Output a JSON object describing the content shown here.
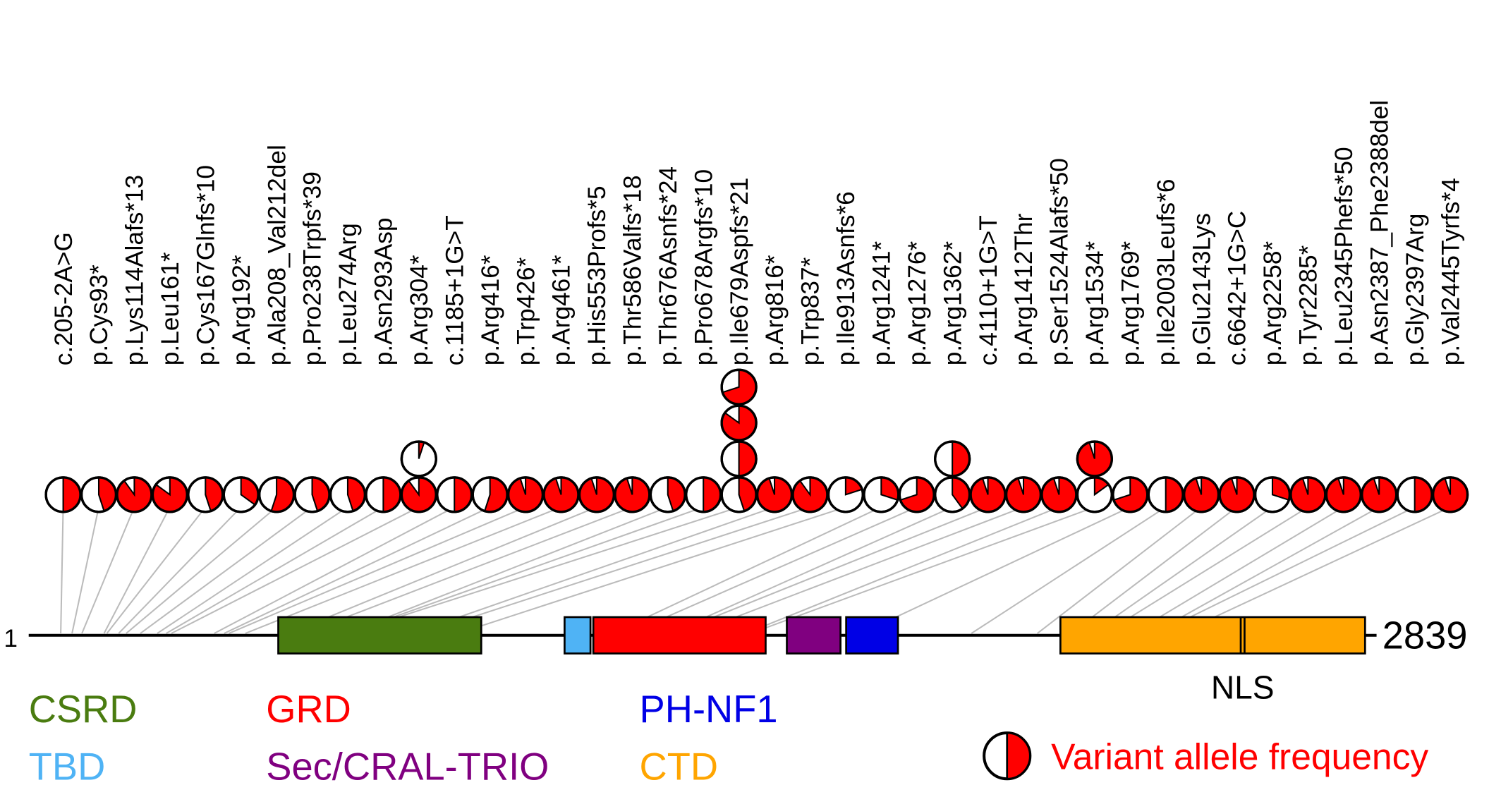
{
  "protein": {
    "start": 1,
    "length": 2839
  },
  "domains": [
    {
      "name": "CSRD",
      "start": 531,
      "end": 962,
      "color": "#4a7c10"
    },
    {
      "name": "TBD",
      "start": 1139,
      "end": 1194,
      "color": "#4fb3f5"
    },
    {
      "name": "GRD",
      "start": 1200,
      "end": 1566,
      "color": "#ff0000"
    },
    {
      "name": "Sec/CRAL-TRIO",
      "start": 1611,
      "end": 1725,
      "color": "#800080"
    },
    {
      "name": "PH-NF1",
      "start": 1737,
      "end": 1847,
      "color": "#0000e6"
    },
    {
      "name": "CTD",
      "start": 2192,
      "end": 2839,
      "color": "#ffa500"
    }
  ],
  "nls": {
    "label": "NLS",
    "position": 2579
  },
  "legend_label": "Variant allele frequency",
  "variants": [
    {
      "label": "c.205-2A>G",
      "position": 69,
      "vaf": [
        0.5
      ]
    },
    {
      "label": "p.Cys93*",
      "position": 93,
      "vaf": [
        0.45
      ]
    },
    {
      "label": "p.Lys114Alafs*13",
      "position": 114,
      "vaf": [
        0.9
      ]
    },
    {
      "label": "p.Leu161*",
      "position": 161,
      "vaf": [
        0.85
      ]
    },
    {
      "label": "p.Cys167Glnfs*10",
      "position": 167,
      "vaf": [
        0.45
      ]
    },
    {
      "label": "p.Arg192*",
      "position": 192,
      "vaf": [
        0.35
      ]
    },
    {
      "label": "p.Ala208_Val212del",
      "position": 208,
      "vaf": [
        0.55
      ]
    },
    {
      "label": "p.Pro238Trpfs*39",
      "position": 238,
      "vaf": [
        0.45
      ]
    },
    {
      "label": "p.Leu274Arg",
      "position": 274,
      "vaf": [
        0.45
      ]
    },
    {
      "label": "p.Asn293Asp",
      "position": 293,
      "vaf": [
        0.5
      ]
    },
    {
      "label": "p.Arg304*",
      "position": 304,
      "vaf": [
        0.9,
        0.05
      ]
    },
    {
      "label": "c.1185+1G>T",
      "position": 395,
      "vaf": [
        0.5
      ]
    },
    {
      "label": "p.Arg416*",
      "position": 416,
      "vaf": [
        0.55
      ]
    },
    {
      "label": "p.Trp426*",
      "position": 426,
      "vaf": [
        0.95
      ]
    },
    {
      "label": "p.Arg461*",
      "position": 461,
      "vaf": [
        0.95
      ]
    },
    {
      "label": "p.His553Profs*5",
      "position": 553,
      "vaf": [
        0.95
      ]
    },
    {
      "label": "p.Thr586Valfs*18",
      "position": 586,
      "vaf": [
        0.95
      ]
    },
    {
      "label": "p.Thr676Asnfs*24",
      "position": 676,
      "vaf": [
        0.45
      ]
    },
    {
      "label": "p.Pro678Argfs*10",
      "position": 678,
      "vaf": [
        0.5
      ]
    },
    {
      "label": "p.Ile679Aspfs*21",
      "position": 679,
      "vaf": [
        0.45,
        0.5,
        0.85,
        0.7
      ]
    },
    {
      "label": "p.Arg816*",
      "position": 816,
      "vaf": [
        0.95
      ]
    },
    {
      "label": "p.Trp837*",
      "position": 837,
      "vaf": [
        0.9
      ]
    },
    {
      "label": "p.Ile913Asnfs*6",
      "position": 913,
      "vaf": [
        0.2
      ]
    },
    {
      "label": "p.Arg1241*",
      "position": 1241,
      "vaf": [
        0.3
      ]
    },
    {
      "label": "p.Arg1276*",
      "position": 1276,
      "vaf": [
        0.7
      ]
    },
    {
      "label": "p.Arg1362*",
      "position": 1362,
      "vaf": [
        0.4,
        0.5
      ]
    },
    {
      "label": "c.4110+1G>T",
      "position": 1370,
      "vaf": [
        0.95
      ]
    },
    {
      "label": "p.Arg1412Thr",
      "position": 1412,
      "vaf": [
        0.95
      ]
    },
    {
      "label": "p.Ser1524Alafs*50",
      "position": 1524,
      "vaf": [
        0.95
      ]
    },
    {
      "label": "p.Arg1534*",
      "position": 1534,
      "vaf": [
        0.15,
        0.95
      ]
    },
    {
      "label": "p.Arg1769*",
      "position": 1769,
      "vaf": [
        0.7
      ]
    },
    {
      "label": "p.Ile2003Leufs*6",
      "position": 2003,
      "vaf": [
        0.5
      ]
    },
    {
      "label": "p.Glu2143Lys",
      "position": 2143,
      "vaf": [
        0.95
      ]
    },
    {
      "label": "c.6642+1G>C",
      "position": 2214,
      "vaf": [
        0.95
      ]
    },
    {
      "label": "p.Arg2258*",
      "position": 2258,
      "vaf": [
        0.3
      ]
    },
    {
      "label": "p.Tyr2285*",
      "position": 2285,
      "vaf": [
        0.95
      ]
    },
    {
      "label": "p.Leu2345Phefs*50",
      "position": 2345,
      "vaf": [
        0.95
      ]
    },
    {
      "label": "p.Asn2387_Phe2388del",
      "position": 2387,
      "vaf": [
        0.95
      ]
    },
    {
      "label": "p.Gly2397Arg",
      "position": 2397,
      "vaf": [
        0.5
      ]
    },
    {
      "label": "p.Val2445Tyrfs*4",
      "position": 2445,
      "vaf": [
        0.95
      ]
    }
  ]
}
